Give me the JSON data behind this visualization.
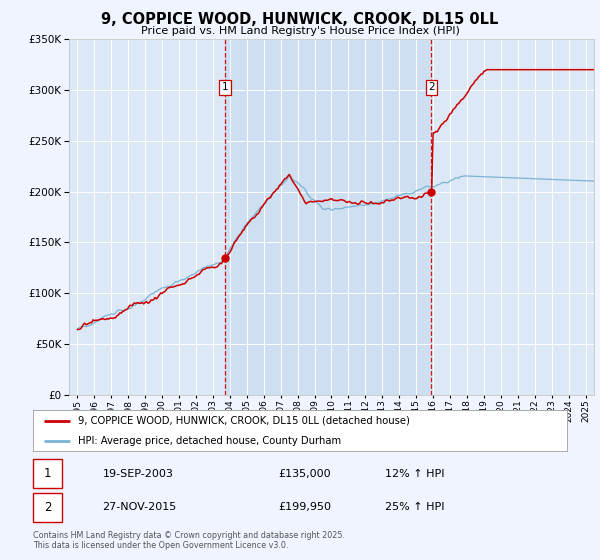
{
  "title": "9, COPPICE WOOD, HUNWICK, CROOK, DL15 0LL",
  "subtitle": "Price paid vs. HM Land Registry's House Price Index (HPI)",
  "red_label": "9, COPPICE WOOD, HUNWICK, CROOK, DL15 0LL (detached house)",
  "blue_label": "HPI: Average price, detached house, County Durham",
  "transaction1_date": "19-SEP-2003",
  "transaction1_price": "£135,000",
  "transaction1_hpi": "12% ↑ HPI",
  "transaction2_date": "27-NOV-2015",
  "transaction2_price": "£199,950",
  "transaction2_hpi": "25% ↑ HPI",
  "vline1_x": 2003.72,
  "vline2_x": 2015.9,
  "marker1_y": 135000,
  "marker2_y": 199950,
  "ylim": [
    0,
    350000
  ],
  "xlim": [
    1994.5,
    2025.5
  ],
  "yticks": [
    0,
    50000,
    100000,
    150000,
    200000,
    250000,
    300000,
    350000
  ],
  "background_color": "#f0f4ff",
  "plot_bg_color": "#dce8f5",
  "shade_color": "#ccdff0",
  "red_color": "#cc0000",
  "blue_color": "#7ab3d4",
  "grid_color": "#ffffff",
  "footer": "Contains HM Land Registry data © Crown copyright and database right 2025.\nThis data is licensed under the Open Government Licence v3.0."
}
